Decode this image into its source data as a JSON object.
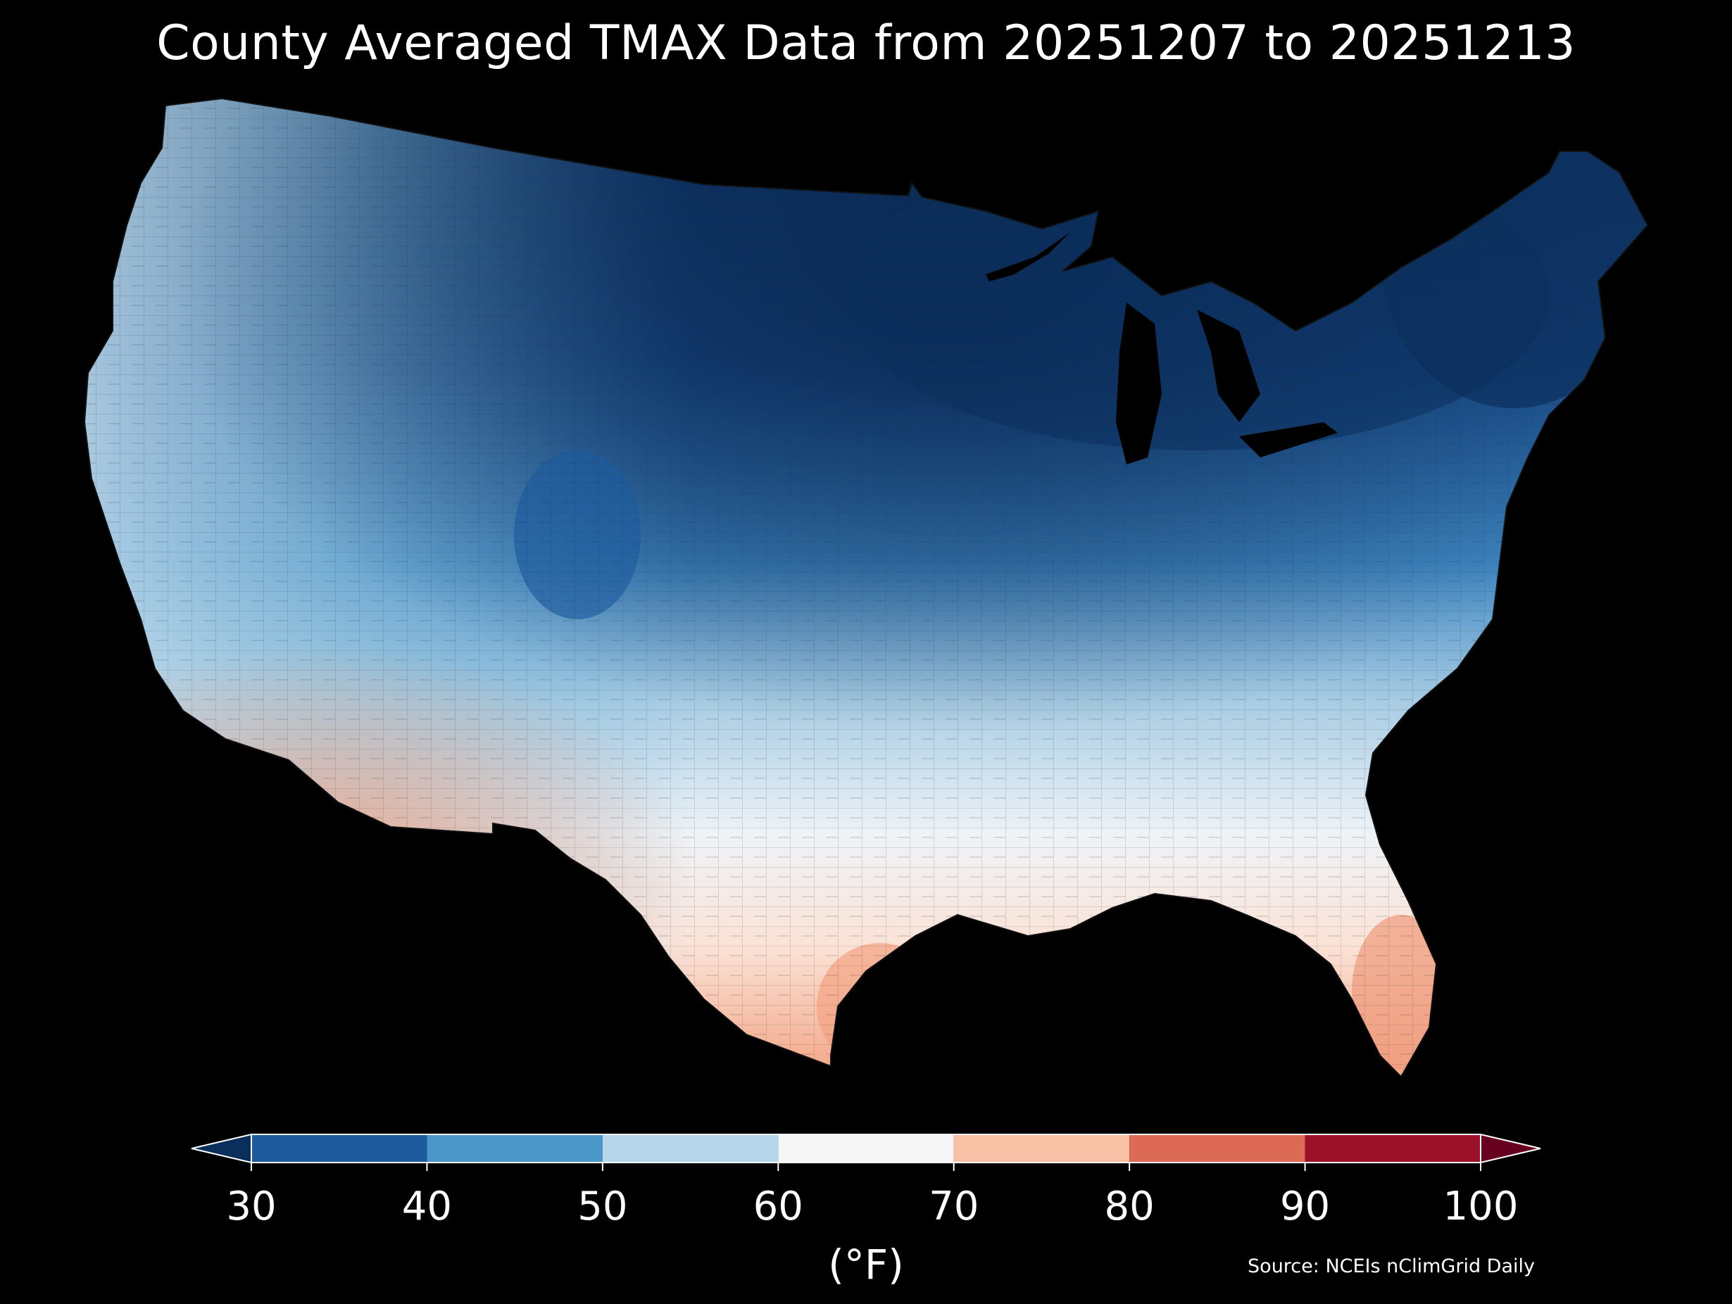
{
  "title": "County Averaged TMAX Data from 20251207 to 20251213",
  "colorbar": {
    "ticks": [
      "30",
      "40",
      "50",
      "60",
      "70",
      "80",
      "90",
      "100"
    ],
    "unit_label": "(°F)",
    "bins": [
      {
        "from": 30,
        "to": 40,
        "color": "#1d5a9e"
      },
      {
        "from": 40,
        "to": 50,
        "color": "#4b97c9"
      },
      {
        "from": 50,
        "to": 60,
        "color": "#b6d6e9"
      },
      {
        "from": 60,
        "to": 70,
        "color": "#f6f6f6"
      },
      {
        "from": 70,
        "to": 80,
        "color": "#f9c2a7"
      },
      {
        "from": 80,
        "to": 90,
        "color": "#dd6a54"
      },
      {
        "from": 90,
        "to": 100,
        "color": "#9c1128"
      }
    ],
    "under_color": "#0b2f5c",
    "over_color": "#67001f"
  },
  "source": "Source: NCEIs nClimGrid Daily",
  "colors": {
    "background": "#000000",
    "text": "#ffffff",
    "county_lines": "#222222"
  }
}
